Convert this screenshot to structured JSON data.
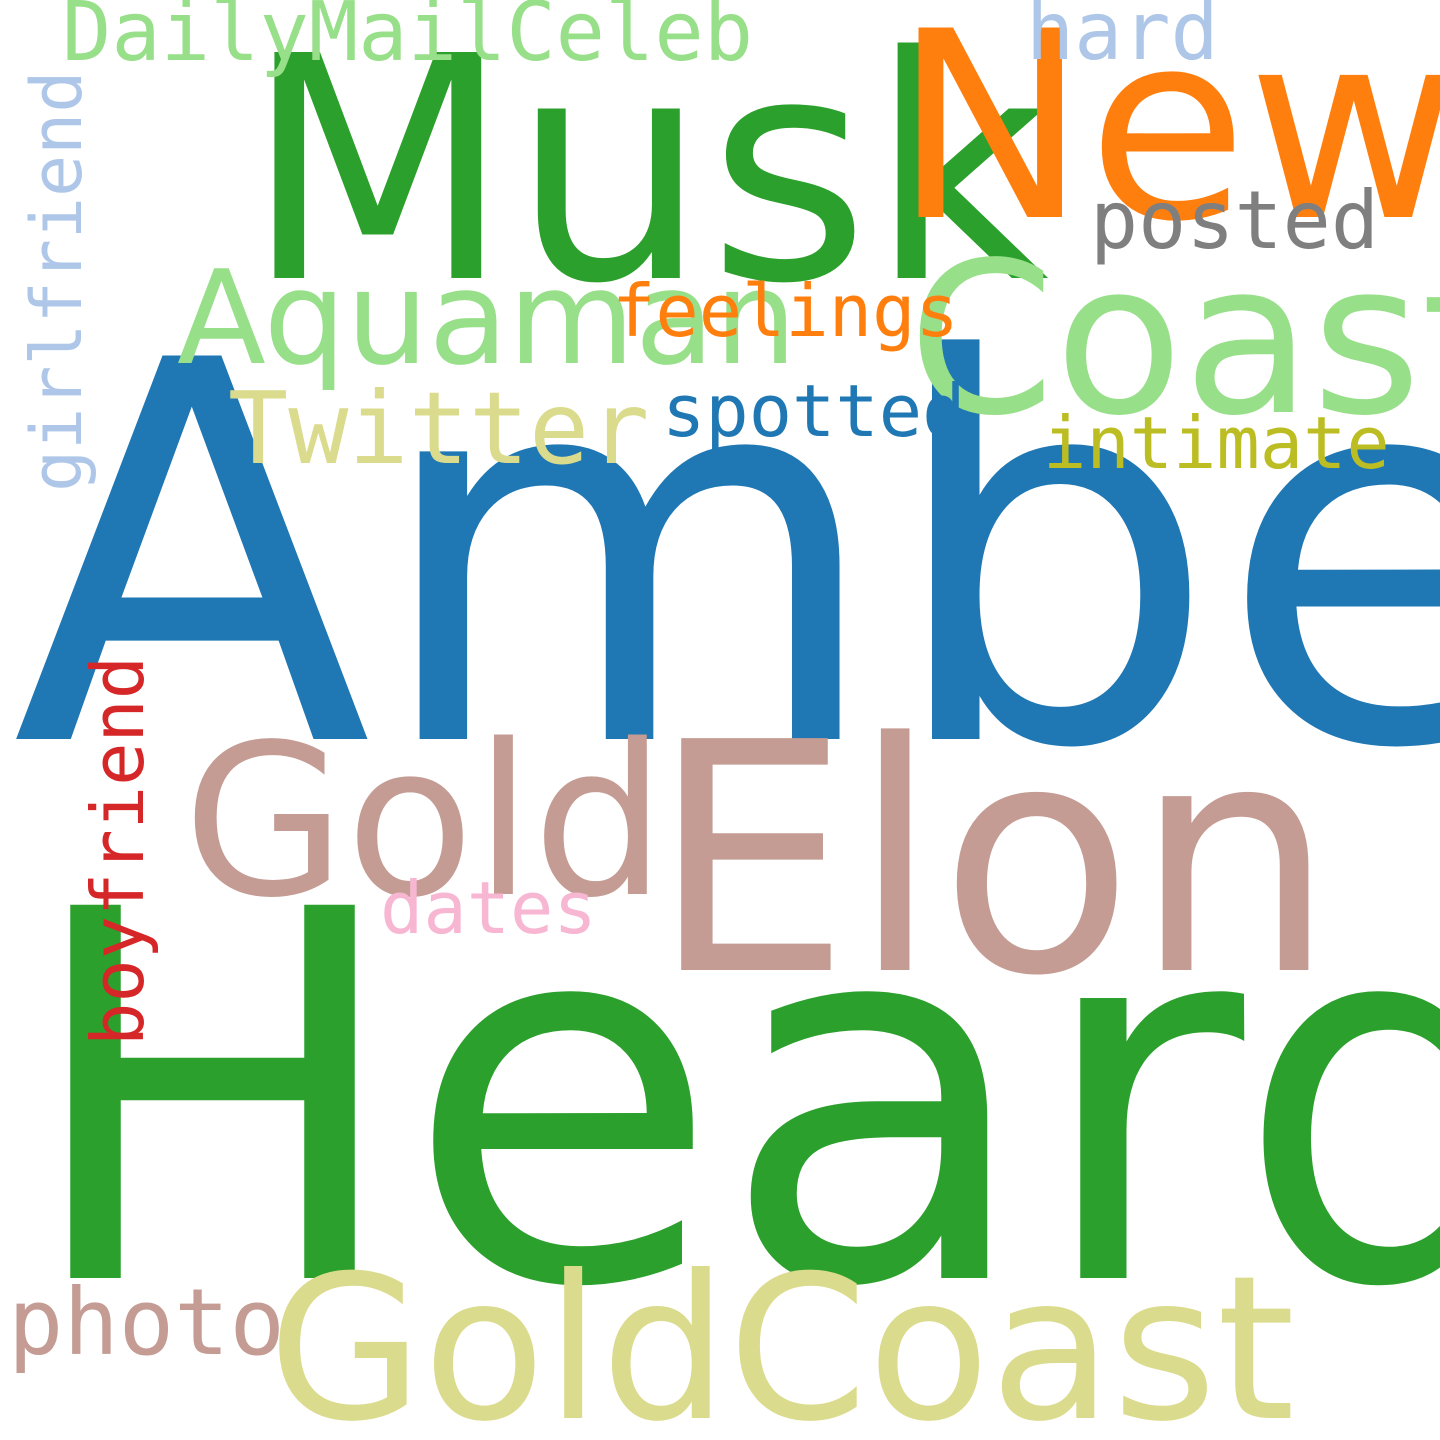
{
  "words": {
    "amber": {
      "text": "Amber",
      "color": "#1f77b4"
    },
    "heard": {
      "text": "Heard",
      "color": "#2ca02c"
    },
    "musk": {
      "text": "Musk",
      "color": "#2ca02c"
    },
    "news": {
      "text": "News",
      "color": "#ff7f0e"
    },
    "elon": {
      "text": "Elon",
      "color": "#c49c94"
    },
    "coast": {
      "text": "Coast",
      "color": "#98df8a"
    },
    "goldcoast": {
      "text": "GoldCoast",
      "color": "#dbdb8d"
    },
    "gold": {
      "text": "Gold",
      "color": "#c49c94"
    },
    "aquaman": {
      "text": "Aquaman",
      "color": "#98df8a"
    },
    "dailymailceleb": {
      "text": "DailyMailCeleb",
      "color": "#98df8a"
    },
    "twitter": {
      "text": "Twitter",
      "color": "#dbdb8d"
    },
    "feelings": {
      "text": "feelings",
      "color": "#ff7f0e"
    },
    "spotted": {
      "text": "spotted",
      "color": "#1f77b4"
    },
    "intimate": {
      "text": "intimate",
      "color": "#bcbd22"
    },
    "posted": {
      "text": "posted",
      "color": "#7f7f7f"
    },
    "hard": {
      "text": "hard",
      "color": "#aec7e8"
    },
    "photo": {
      "text": "photo",
      "color": "#c49c94"
    },
    "dates": {
      "text": "dates",
      "color": "#f7b6d2"
    },
    "girlfriend": {
      "text": "girlfriend",
      "color": "#aec7e8"
    },
    "boyfriend": {
      "text": "boyfriend",
      "color": "#d62728"
    }
  }
}
